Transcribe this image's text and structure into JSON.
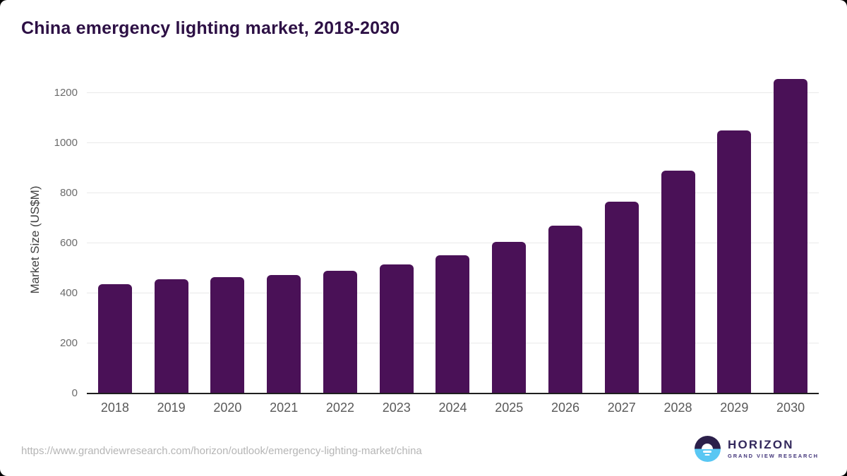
{
  "header": {
    "title": "China emergency lighting market, 2018-2030",
    "title_color": "#2d1045"
  },
  "chart_data": {
    "type": "bar",
    "title": "China emergency lighting market, 2018-2030",
    "categories": [
      "2018",
      "2019",
      "2020",
      "2021",
      "2022",
      "2023",
      "2024",
      "2025",
      "2026",
      "2027",
      "2028",
      "2029",
      "2030"
    ],
    "values": [
      435,
      457,
      464,
      473,
      490,
      514,
      553,
      604,
      671,
      765,
      890,
      1050,
      1255
    ],
    "series_name": "Market Size (US$M)",
    "xlabel": "",
    "ylabel": "Market Size (US$M)",
    "ylim": [
      0,
      1275
    ],
    "yticks": [
      0,
      200,
      400,
      600,
      800,
      1000,
      1200
    ],
    "grid": true,
    "legend": false,
    "bar_color": "#4a1157",
    "gridline_color": "#e9e9e9",
    "axis_line_color": "#1f1f1f",
    "tick_label_color": "#6b6b6b"
  },
  "footer": {
    "source_url": "https://www.grandviewresearch.com/horizon/outlook/emergency-lighting-market/china",
    "logo": {
      "brand": "HORIZON",
      "sub_brand": "GRAND VIEW RESEARCH",
      "mark_top_color": "#2b1f4a",
      "mark_bottom_color": "#59c7f3"
    }
  }
}
